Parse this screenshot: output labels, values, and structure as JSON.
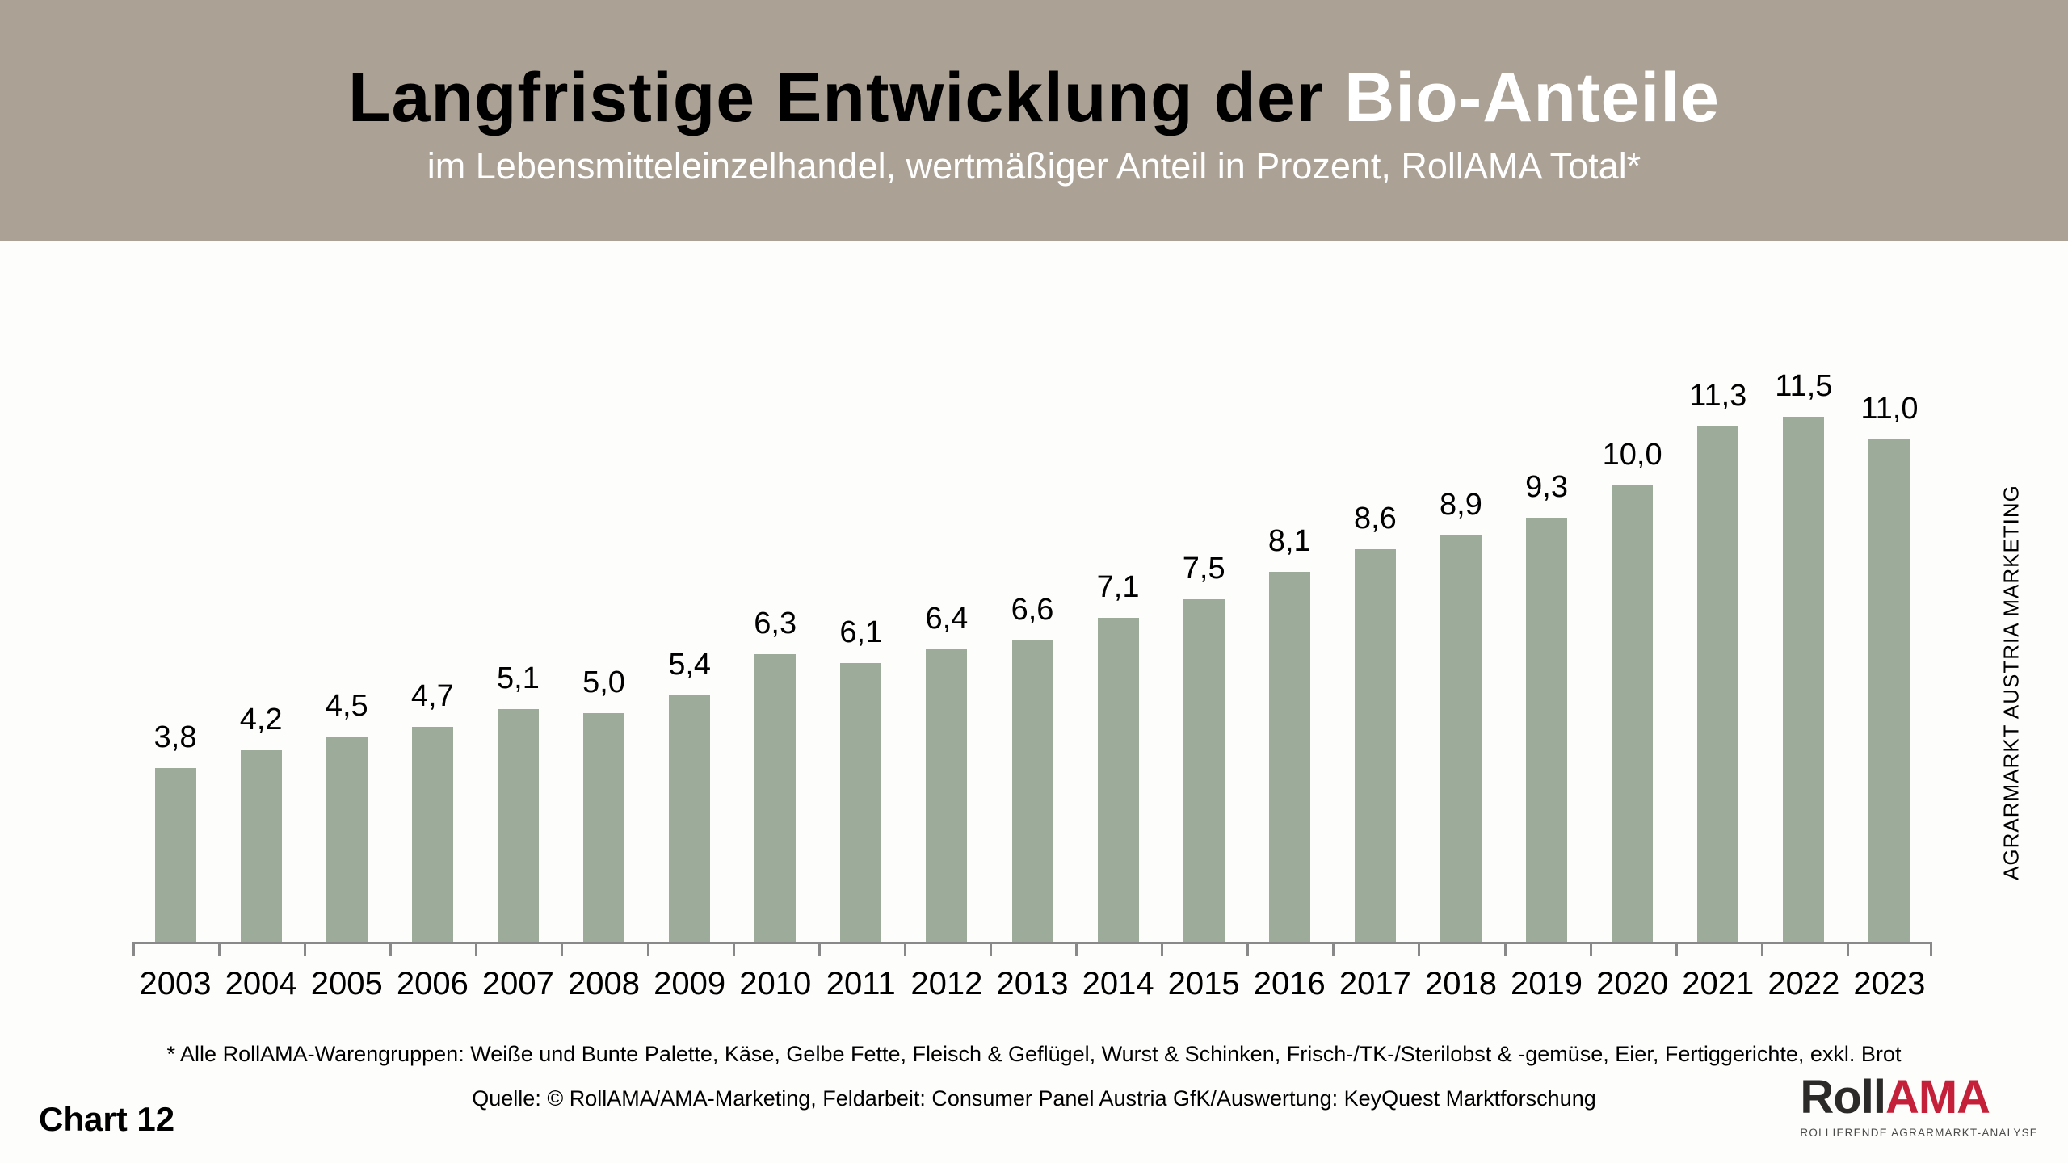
{
  "header": {
    "title": {
      "dark": "Langfristige Entwicklung der ",
      "light": "Bio-Anteile"
    },
    "subtitle": "im Lebensmitteleinzelhandel, wertmäßiger Anteil in Prozent, RollAMA Total*",
    "background_color": "#aba195"
  },
  "chart_data": {
    "type": "bar",
    "title": "Langfristige Entwicklung der Bio-Anteile",
    "subtitle": "im Lebensmitteleinzelhandel, wertmäßiger Anteil in Prozent, RollAMA Total*",
    "categories": [
      "2003",
      "2004",
      "2005",
      "2006",
      "2007",
      "2008",
      "2009",
      "2010",
      "2011",
      "2012",
      "2013",
      "2014",
      "2015",
      "2016",
      "2017",
      "2018",
      "2019",
      "2020",
      "2021",
      "2022",
      "2023"
    ],
    "values": [
      3.8,
      4.2,
      4.5,
      4.7,
      5.1,
      5.0,
      5.4,
      6.3,
      6.1,
      6.4,
      6.6,
      7.1,
      7.5,
      8.1,
      8.6,
      8.9,
      9.3,
      10.0,
      11.3,
      11.5,
      11.0
    ],
    "value_labels": [
      "3,8",
      "4,2",
      "4,5",
      "4,7",
      "5,1",
      "5,0",
      "5,4",
      "6,3",
      "6,1",
      "6,4",
      "6,6",
      "7,1",
      "7,5",
      "8,1",
      "8,6",
      "8,9",
      "9,3",
      "10,0",
      "11,3",
      "11,5",
      "11,0"
    ],
    "bar_color": "#9dab9a",
    "axis_color": "#898989",
    "xlabel": "",
    "ylabel": "",
    "ylim": [
      0,
      12.3
    ],
    "grid": false,
    "legend_position": "none"
  },
  "side_label": "AGRARMARKT AUSTRIA MARKETING",
  "footnotes": {
    "warengruppen": "* Alle RollAMA-Warengruppen: Weiße und Bunte Palette, Käse, Gelbe Fette, Fleisch & Geflügel, Wurst & Schinken, Frisch-/TK-/Sterilobst & -gemüse, Eier, Fertiggerichte, exkl. Brot",
    "quelle": "Quelle: © RollAMA/AMA-Marketing, Feldarbeit: Consumer Panel Austria GfK/Auswertung: KeyQuest Marktforschung"
  },
  "footer": {
    "chart_number": "Chart 12",
    "logo": {
      "word_dark": "Roll",
      "word_red": "AMA",
      "dark_color": "#2b2a29",
      "red_color": "#c5203a",
      "tagline": "ROLLIERENDE AGRARMARKT-ANALYSE"
    }
  }
}
